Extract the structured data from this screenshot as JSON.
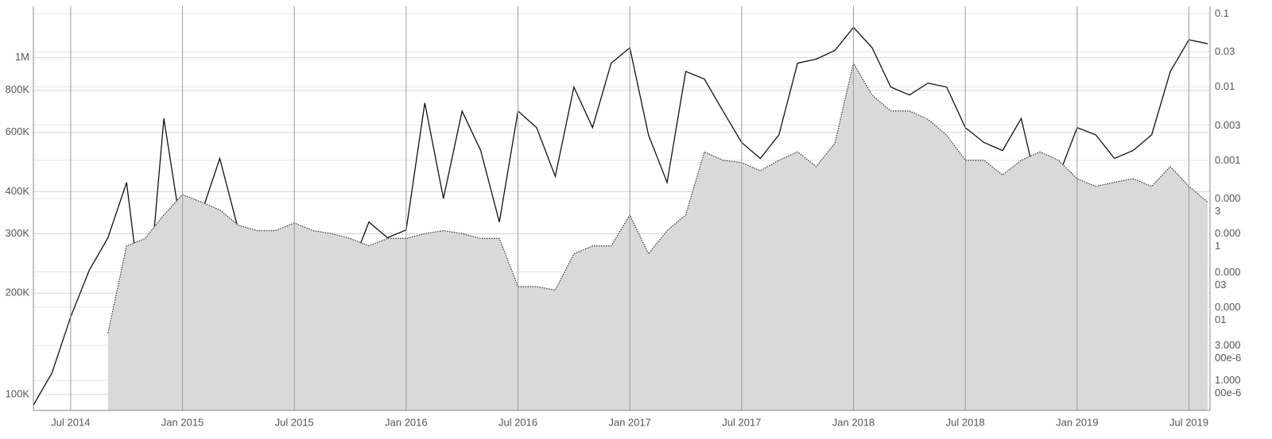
{
  "chart_data": {
    "type": "line",
    "x": [
      "2014-05",
      "2014-06",
      "2014-07",
      "2014-08",
      "2014-09",
      "2014-10",
      "2014-11",
      "2014-12",
      "2015-01",
      "2015-02",
      "2015-03",
      "2015-04",
      "2015-05",
      "2015-06",
      "2015-07",
      "2015-08",
      "2015-09",
      "2015-10",
      "2015-11",
      "2015-12",
      "2016-01",
      "2016-02",
      "2016-03",
      "2016-04",
      "2016-05",
      "2016-06",
      "2016-07",
      "2016-08",
      "2016-09",
      "2016-10",
      "2016-11",
      "2016-12",
      "2017-01",
      "2017-02",
      "2017-03",
      "2017-04",
      "2017-05",
      "2017-06",
      "2017-07",
      "2017-08",
      "2017-09",
      "2017-10",
      "2017-11",
      "2017-12",
      "2018-01",
      "2018-02",
      "2018-03",
      "2018-04",
      "2018-05",
      "2018-06",
      "2018-07",
      "2018-08",
      "2018-09",
      "2018-10",
      "2018-11",
      "2018-12",
      "2019-01",
      "2019-02",
      "2019-03",
      "2019-04",
      "2019-05",
      "2019-06",
      "2019-07",
      "2019-08"
    ],
    "xlim": [
      "2014-05",
      "2019-08"
    ],
    "xticks": [
      {
        "value": "2014-07",
        "label": "Jul 2014"
      },
      {
        "value": "2015-01",
        "label": "Jan 2015"
      },
      {
        "value": "2015-07",
        "label": "Jul 2015"
      },
      {
        "value": "2016-01",
        "label": "Jan 2016"
      },
      {
        "value": "2016-07",
        "label": "Jul 2016"
      },
      {
        "value": "2017-01",
        "label": "Jan 2017"
      },
      {
        "value": "2017-07",
        "label": "Jul 2017"
      },
      {
        "value": "2018-01",
        "label": "Jan 2018"
      },
      {
        "value": "2018-07",
        "label": "Jul 2018"
      },
      {
        "value": "2019-01",
        "label": "Jan 2019"
      },
      {
        "value": "2019-07",
        "label": "Jul 2019"
      }
    ],
    "ylim": [
      89700,
      1420000
    ],
    "log_y": true,
    "yticks": [
      {
        "value": 100000,
        "label": "100K"
      },
      {
        "value": 200000,
        "label": "200K"
      },
      {
        "value": 300000,
        "label": "300K"
      },
      {
        "value": 400000,
        "label": "400K"
      },
      {
        "value": 600000,
        "label": "600K"
      },
      {
        "value": 800000,
        "label": "800K"
      },
      {
        "value": 1000000,
        "label": "1M"
      }
    ],
    "y2lim": [
      3.9e-07,
      0.125
    ],
    "log_y2": true,
    "y2ticks": [
      0.1,
      0.03,
      0.01,
      0.003,
      0.001,
      0.0003,
      0.0001,
      3e-05,
      1e-05,
      {
        "value": 3e-06,
        "label": "3.00000e-6"
      },
      {
        "value": 1e-06,
        "label": "1.00000e-6"
      }
    ],
    "grid": true,
    "series": [
      {
        "color": "#111111",
        "style": "solid",
        "fill": false,
        "values": [
          93000,
          116000,
          170000,
          234000,
          292000,
          426000,
          152000,
          660000,
          292000,
          343000,
          502000,
          308000,
          210000,
          188000,
          292000,
          248000,
          262000,
          234000,
          325000,
          292000,
          308000,
          734000,
          382000,
          694000,
          530000,
          325000,
          694000,
          620000,
          444000,
          818000,
          620000,
          963000,
          1070000,
          590000,
          426000,
          910000,
          864000,
          694000,
          560000,
          502000,
          590000,
          963000,
          990000,
          1050000,
          1230000,
          1070000,
          818000,
          775000,
          840000,
          818000,
          620000,
          560000,
          530000,
          660000,
          382000,
          444000,
          620000,
          590000,
          502000,
          530000,
          590000,
          910000,
          1130000,
          1100000
        ]
      },
      {
        "color": "#333333",
        "style": "dotted",
        "fill": true,
        "fill_color": "#d9d9d9",
        "axis": "y2",
        "values": [
          null,
          null,
          null,
          null,
          4.4e-06,
          6.8e-05,
          8.6e-05,
          0.00018,
          0.00034,
          0.00027,
          0.00021,
          0.00013,
          0.00011,
          0.00011,
          0.00014,
          0.00011,
          0.0001,
          8.6e-05,
          6.8e-05,
          8.6e-05,
          8.6e-05,
          0.0001,
          0.00011,
          0.0001,
          8.6e-05,
          8.6e-05,
          1.9e-05,
          1.9e-05,
          1.7e-05,
          5.3e-05,
          6.8e-05,
          6.8e-05,
          0.00018,
          5.3e-05,
          0.00011,
          0.00018,
          0.0013,
          0.001,
          0.00093,
          0.00072,
          0.001,
          0.0013,
          0.00082,
          0.0017,
          0.021,
          0.0077,
          0.0047,
          0.0047,
          0.0036,
          0.0022,
          0.001,
          0.001,
          0.00063,
          0.001,
          0.0013,
          0.001,
          0.00056,
          0.00044,
          0.0005,
          0.00056,
          0.00044,
          0.00082,
          0.00044,
          0.00027
        ]
      }
    ]
  }
}
